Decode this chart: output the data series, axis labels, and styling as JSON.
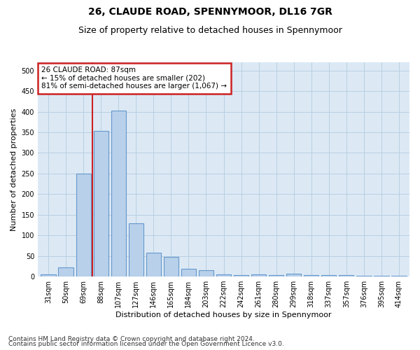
{
  "title": "26, CLAUDE ROAD, SPENNYMOOR, DL16 7GR",
  "subtitle": "Size of property relative to detached houses in Spennymoor",
  "xlabel": "Distribution of detached houses by size in Spennymoor",
  "ylabel": "Number of detached properties",
  "bar_labels": [
    "31sqm",
    "50sqm",
    "69sqm",
    "88sqm",
    "107sqm",
    "127sqm",
    "146sqm",
    "165sqm",
    "184sqm",
    "203sqm",
    "222sqm",
    "242sqm",
    "261sqm",
    "280sqm",
    "299sqm",
    "318sqm",
    "337sqm",
    "357sqm",
    "376sqm",
    "395sqm",
    "414sqm"
  ],
  "bar_values": [
    5,
    22,
    250,
    353,
    403,
    130,
    58,
    48,
    18,
    15,
    5,
    4,
    5,
    4,
    7,
    4,
    4,
    4,
    1,
    1,
    1
  ],
  "bar_color": "#b8d0ea",
  "bar_edge_color": "#6699cc",
  "vline_x_index": 2.5,
  "vline_color": "#cc2222",
  "annotation_text": "26 CLAUDE ROAD: 87sqm\n← 15% of detached houses are smaller (202)\n81% of semi-detached houses are larger (1,067) →",
  "annotation_box_color": "#cc2222",
  "ylim": [
    0,
    520
  ],
  "yticks": [
    0,
    50,
    100,
    150,
    200,
    250,
    300,
    350,
    400,
    450,
    500
  ],
  "footer_line1": "Contains HM Land Registry data © Crown copyright and database right 2024.",
  "footer_line2": "Contains public sector information licensed under the Open Government Licence v3.0.",
  "bg_color": "#ffffff",
  "plot_bg_color": "#dce9f5",
  "grid_color": "#b8cfe0",
  "title_fontsize": 10,
  "subtitle_fontsize": 9,
  "axis_label_fontsize": 8,
  "tick_fontsize": 7,
  "footer_fontsize": 6.5,
  "annotation_fontsize": 7.5
}
